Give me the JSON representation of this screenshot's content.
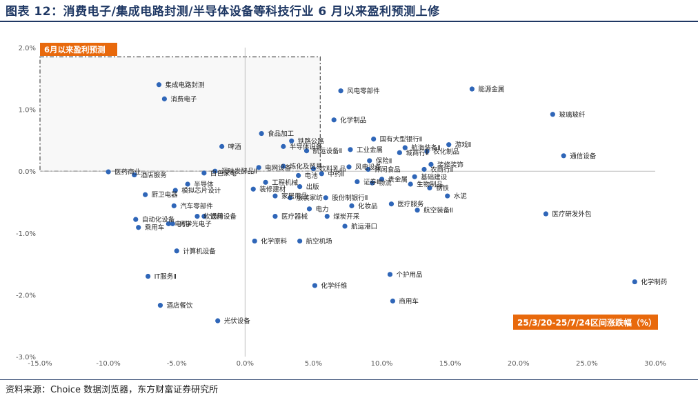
{
  "title": "图表  12：消费电子/集成电路封测/半导体设备等科技行业 6 月以来盈利预测上修",
  "source": "资料来源：Choice 数据浏览器，东方财富证券研究所",
  "chart_data": {
    "type": "scatter",
    "title": "",
    "xlabel": "25/3/20-25/7/24区间涨跌幅（%）",
    "ylabel": "6月以来盈利预测",
    "xlim": [
      -15,
      30
    ],
    "ylim": [
      -3,
      2
    ],
    "xticks": [
      "-15.0%",
      "-10.0%",
      "-5.0%",
      "0.0%",
      "5.0%",
      "10.0%",
      "15.0%",
      "20.0%",
      "25.0%",
      "30.0%"
    ],
    "yticks": [
      "2.0%",
      "1.0%",
      "0.0%",
      "-1.0%",
      "-2.0%",
      "-3.0%"
    ],
    "grid": false,
    "colors": {
      "marker": "#2f66b8",
      "label_box": "#e8690c",
      "axis": "#bfbfbf",
      "highlight_box": "#595959"
    },
    "highlight_region": {
      "x": [
        -15,
        5.5
      ],
      "y": [
        0,
        1.85
      ]
    },
    "points": [
      {
        "name": "集成电路封测",
        "x": -6.3,
        "y": 1.4
      },
      {
        "name": "消费电子",
        "x": -5.9,
        "y": 1.17
      },
      {
        "name": "风电零部件",
        "x": 7.0,
        "y": 1.3
      },
      {
        "name": "能源金属",
        "x": 16.6,
        "y": 1.33
      },
      {
        "name": "玻璃玻纤",
        "x": 22.5,
        "y": 0.92
      },
      {
        "name": "化学制品",
        "x": 6.5,
        "y": 0.83
      },
      {
        "name": "食品加工",
        "x": 1.2,
        "y": 0.61
      },
      {
        "name": "铁路公路",
        "x": 3.4,
        "y": 0.49
      },
      {
        "name": "国有大型银行Ⅱ",
        "x": 9.4,
        "y": 0.52
      },
      {
        "name": "航海装备Ⅱ",
        "x": 11.7,
        "y": 0.38
      },
      {
        "name": "游戏Ⅱ",
        "x": 14.9,
        "y": 0.43
      },
      {
        "name": "啤酒",
        "x": -1.7,
        "y": 0.4
      },
      {
        "name": "半导体设备",
        "x": 2.8,
        "y": 0.4
      },
      {
        "name": "航运设备Ⅱ",
        "x": 4.5,
        "y": 0.33
      },
      {
        "name": "工业金属",
        "x": 7.7,
        "y": 0.35
      },
      {
        "name": "城商行Ⅱ",
        "x": 11.3,
        "y": 0.3
      },
      {
        "name": "农化制品",
        "x": 13.3,
        "y": 0.32
      },
      {
        "name": "通信设备",
        "x": 23.3,
        "y": 0.25
      },
      {
        "name": "电网设备",
        "x": 1.0,
        "y": 0.06
      },
      {
        "name": "炼化及贸易",
        "x": 2.8,
        "y": 0.08
      },
      {
        "name": "调味发酵品Ⅱ",
        "x": -2.2,
        "y": 0.0
      },
      {
        "name": "保险Ⅱ",
        "x": 9.1,
        "y": 0.17
      },
      {
        "name": "饮料乳品",
        "x": 5.0,
        "y": 0.04
      },
      {
        "name": "风电设备",
        "x": 7.6,
        "y": 0.07
      },
      {
        "name": "休闲食品",
        "x": 9.0,
        "y": 0.03
      },
      {
        "name": "装修装饰",
        "x": 13.6,
        "y": 0.11
      },
      {
        "name": "农商行Ⅱ",
        "x": 13.1,
        "y": 0.03
      },
      {
        "name": "白色家电",
        "x": -3.0,
        "y": -0.03
      },
      {
        "name": "电池",
        "x": 3.9,
        "y": -0.07
      },
      {
        "name": "中药Ⅱ",
        "x": 5.6,
        "y": -0.04
      },
      {
        "name": "基础建设",
        "x": 12.4,
        "y": -0.09
      },
      {
        "name": "医药商业",
        "x": -10.0,
        "y": -0.01
      },
      {
        "name": "酒店服务",
        "x": -8.1,
        "y": -0.06
      },
      {
        "name": "贵金属",
        "x": 10.0,
        "y": -0.13
      },
      {
        "name": "证券Ⅱ",
        "x": 8.2,
        "y": -0.17
      },
      {
        "name": "物流",
        "x": 9.3,
        "y": -0.19
      },
      {
        "name": "工程机械",
        "x": 1.5,
        "y": -0.18
      },
      {
        "name": "半导体",
        "x": -4.2,
        "y": -0.21
      },
      {
        "name": "钢铁",
        "x": 13.5,
        "y": -0.27
      },
      {
        "name": "模拟芯片设计",
        "x": -5.1,
        "y": -0.31
      },
      {
        "name": "装修建材",
        "x": 0.6,
        "y": -0.29
      },
      {
        "name": "出版",
        "x": 4.0,
        "y": -0.25
      },
      {
        "name": "生物制品",
        "x": 12.1,
        "y": -0.21
      },
      {
        "name": "家居用品",
        "x": 2.2,
        "y": -0.4
      },
      {
        "name": "厨卫电器",
        "x": -7.3,
        "y": -0.38
      },
      {
        "name": "服装家纺",
        "x": 3.3,
        "y": -0.43
      },
      {
        "name": "股份制银行Ⅱ",
        "x": 5.9,
        "y": -0.43
      },
      {
        "name": "水泥",
        "x": 14.8,
        "y": -0.4
      },
      {
        "name": "汽车零部件",
        "x": -5.2,
        "y": -0.56
      },
      {
        "name": "化妆品",
        "x": 7.8,
        "y": -0.56
      },
      {
        "name": "医疗服务",
        "x": 10.7,
        "y": -0.53
      },
      {
        "name": "电力",
        "x": 4.7,
        "y": -0.61
      },
      {
        "name": "航空装备Ⅱ",
        "x": 12.6,
        "y": -0.63
      },
      {
        "name": "医疗研发外包",
        "x": 22.0,
        "y": -0.69
      },
      {
        "name": "软饮料",
        "x": -3.5,
        "y": -0.73
      },
      {
        "name": "通用设备",
        "x": -3.0,
        "y": -0.73
      },
      {
        "name": "医疗器械",
        "x": 2.2,
        "y": -0.73
      },
      {
        "name": "煤炭开采",
        "x": 6.0,
        "y": -0.73
      },
      {
        "name": "自动化设备",
        "x": -8.0,
        "y": -0.78
      },
      {
        "name": "光学光电子",
        "x": -5.3,
        "y": -0.85
      },
      {
        "name": "乘用车",
        "x": -7.8,
        "y": -0.91
      },
      {
        "name": "电机Ⅱ",
        "x": -5.6,
        "y": -0.85
      },
      {
        "name": "航运港口",
        "x": 7.3,
        "y": -0.89
      },
      {
        "name": "化学原料",
        "x": 0.7,
        "y": -1.13
      },
      {
        "name": "航空机场",
        "x": 4.0,
        "y": -1.13
      },
      {
        "name": "计算机设备",
        "x": -5.0,
        "y": -1.29
      },
      {
        "name": "IT服务Ⅱ",
        "x": -7.1,
        "y": -1.7
      },
      {
        "name": "个护用品",
        "x": 10.6,
        "y": -1.67
      },
      {
        "name": "化学制药",
        "x": 28.5,
        "y": -1.79
      },
      {
        "name": "化学纤维",
        "x": 5.1,
        "y": -1.85
      },
      {
        "name": "酒店餐饮",
        "x": -6.2,
        "y": -2.17
      },
      {
        "name": "商用车",
        "x": 10.8,
        "y": -2.1
      },
      {
        "name": "光伏设备",
        "x": -2.0,
        "y": -2.42
      }
    ]
  }
}
